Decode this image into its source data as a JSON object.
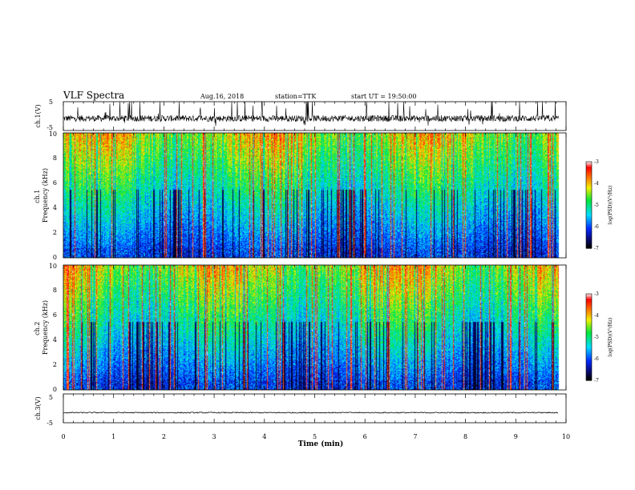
{
  "header": {
    "title": "VLF Spectra",
    "date": "Aug.16, 2018",
    "station": "station=TTK",
    "start": "start UT = 19:50:00"
  },
  "chart_data": [
    {
      "type": "line",
      "name": "ch1-waveform",
      "ylabel": "ch.1(V)",
      "ylim": [
        -5,
        5
      ],
      "yticks": [
        "5",
        "-5"
      ],
      "xlim": [
        0,
        10
      ],
      "description_visible": "dense noisy waveform, mean about -0.8 V, bursts up to +5 V",
      "mean": -0.8
    },
    {
      "type": "heatmap",
      "name": "ch1-spectrogram",
      "ylabel": "ch.1\nFrequency (kHz)",
      "ylim": [
        0,
        10
      ],
      "yticks": [
        "0",
        "2",
        "4",
        "6",
        "8",
        "10"
      ],
      "xlim": [
        0,
        9.85
      ],
      "colorbar": {
        "label": "log(PSD)(V²/Hz)",
        "range": [
          -7,
          -3
        ],
        "ticks": [
          "-3",
          "-4",
          "-5",
          "-6",
          "-7"
        ]
      }
    },
    {
      "type": "heatmap",
      "name": "ch2-spectrogram",
      "ylabel": "ch.2\nFrequency (kHz)",
      "ylim": [
        0,
        10
      ],
      "yticks": [
        "0",
        "2",
        "4",
        "6",
        "8",
        "10"
      ],
      "xlim": [
        0,
        9.85
      ],
      "colorbar": {
        "label": "log(PSD)(V²/Hz)",
        "range": [
          -7,
          -3
        ],
        "ticks": [
          "-3",
          "-4",
          "-5",
          "-6",
          "-7"
        ]
      }
    },
    {
      "type": "line",
      "name": "ch3-waveform",
      "ylabel": "ch.3(V)",
      "ylim": [
        -5,
        5
      ],
      "yticks": [
        "5",
        "-5"
      ],
      "xlim": [
        0,
        10
      ],
      "mean": -1.5
    }
  ],
  "xaxis": {
    "label": "Time (min)",
    "ticks": [
      "0",
      "1",
      "2",
      "3",
      "4",
      "5",
      "6",
      "7",
      "8",
      "9",
      "10"
    ],
    "range": [
      0,
      10
    ]
  }
}
